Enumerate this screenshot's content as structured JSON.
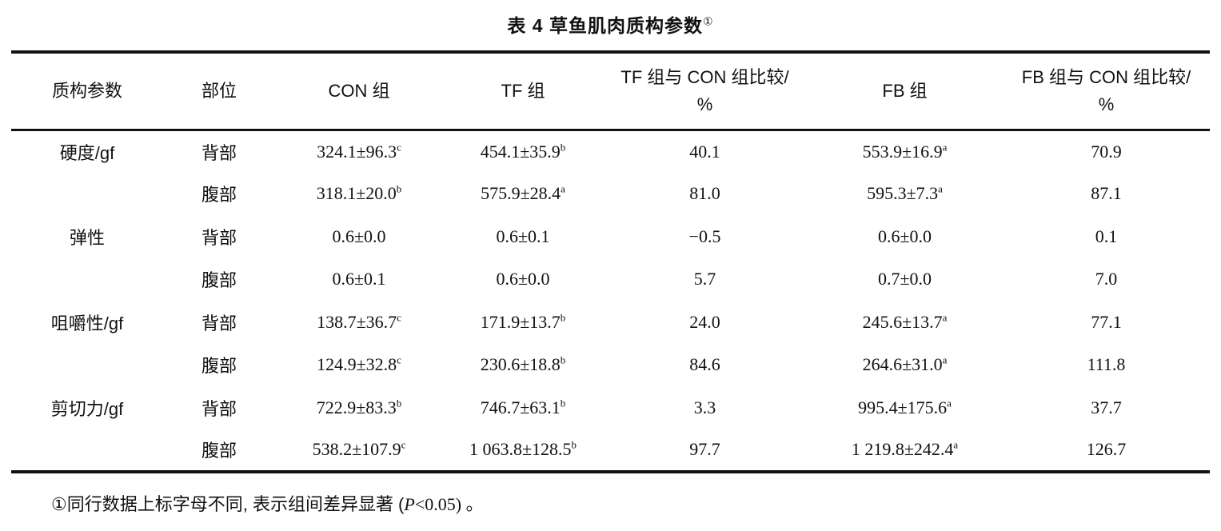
{
  "title": {
    "text": "表 4  草鱼肌肉质构参数",
    "sup": "①"
  },
  "table": {
    "headers": [
      {
        "line1": "质构参数",
        "line2": ""
      },
      {
        "line1": "部位",
        "line2": ""
      },
      {
        "line1": "CON 组",
        "line2": ""
      },
      {
        "line1": "TF 组",
        "line2": ""
      },
      {
        "line1": "TF 组与 CON 组比较/",
        "line2": "%"
      },
      {
        "line1": "FB 组",
        "line2": ""
      },
      {
        "line1": "FB 组与 CON 组比较/",
        "line2": "%"
      }
    ],
    "rows": [
      {
        "param": "硬度/gf",
        "part": "背部",
        "con": "324.1±96.3",
        "con_sup": "c",
        "tf": "454.1±35.9",
        "tf_sup": "b",
        "tf_cmp": "40.1",
        "fb": "553.9±16.9",
        "fb_sup": "a",
        "fb_cmp": "70.9"
      },
      {
        "param": "",
        "part": "腹部",
        "con": "318.1±20.0",
        "con_sup": "b",
        "tf": "575.9±28.4",
        "tf_sup": "a",
        "tf_cmp": "81.0",
        "fb": "595.3±7.3",
        "fb_sup": "a",
        "fb_cmp": "87.1"
      },
      {
        "param": "弹性",
        "part": "背部",
        "con": "0.6±0.0",
        "con_sup": "",
        "tf": "0.6±0.1",
        "tf_sup": "",
        "tf_cmp": "−0.5",
        "fb": "0.6±0.0",
        "fb_sup": "",
        "fb_cmp": "0.1"
      },
      {
        "param": "",
        "part": "腹部",
        "con": "0.6±0.1",
        "con_sup": "",
        "tf": "0.6±0.0",
        "tf_sup": "",
        "tf_cmp": "5.7",
        "fb": "0.7±0.0",
        "fb_sup": "",
        "fb_cmp": "7.0"
      },
      {
        "param": "咀嚼性/gf",
        "part": "背部",
        "con": "138.7±36.7",
        "con_sup": "c",
        "tf": "171.9±13.7",
        "tf_sup": "b",
        "tf_cmp": "24.0",
        "fb": "245.6±13.7",
        "fb_sup": "a",
        "fb_cmp": "77.1"
      },
      {
        "param": "",
        "part": "腹部",
        "con": "124.9±32.8",
        "con_sup": "c",
        "tf": "230.6±18.8",
        "tf_sup": "b",
        "tf_cmp": "84.6",
        "fb": "264.6±31.0",
        "fb_sup": "a",
        "fb_cmp": "111.8"
      },
      {
        "param": "剪切力/gf",
        "part": "背部",
        "con": "722.9±83.3",
        "con_sup": "b",
        "tf": "746.7±63.1",
        "tf_sup": "b",
        "tf_cmp": "3.3",
        "fb": "995.4±175.6",
        "fb_sup": "a",
        "fb_cmp": "37.7"
      },
      {
        "param": "",
        "part": "腹部",
        "con": "538.2±107.9",
        "con_sup": "c",
        "tf": "1 063.8±128.5",
        "tf_sup": "b",
        "tf_cmp": "97.7",
        "fb": "1 219.8±242.4",
        "fb_sup": "a",
        "fb_cmp": "126.7"
      }
    ]
  },
  "footnote": {
    "lead": "①同行数据上标字母不同, 表示组间差异显著 (",
    "p": "P",
    "tail": "<0.05) 。"
  }
}
